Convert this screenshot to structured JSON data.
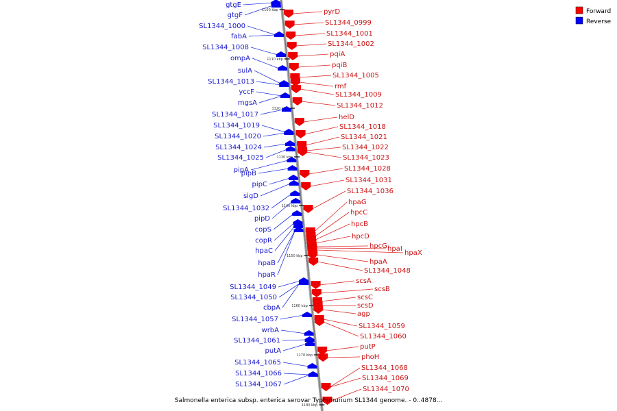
{
  "legend": [
    {
      "label": "Forward",
      "color": "#ff0000"
    },
    {
      "label": "Reverse",
      "color": "#0000ff"
    }
  ],
  "title": "Salmonella enterica subsp. enterica serovar Typhimurium SL1344 genome. - 0..4878...",
  "ticks": [
    "1100 kbp",
    "1110 kbp",
    "1120 kbp",
    "1130 kbp",
    "1140 kbp",
    "1150 kbp",
    "1160 kbp",
    "1170 kbp",
    "1180 kbp"
  ],
  "reverse": [
    "gtgE",
    "gtgF",
    "SL1344_1000",
    "fabA",
    "SL1344_1008",
    "ompA",
    "sulA",
    "SL1344_1013",
    "yccF",
    "mgsA",
    "SL1344_1017",
    "SL1344_1019",
    "SL1344_1020",
    "SL1344_1024",
    "SL1344_1025",
    "pipA",
    "pipB",
    "pipC",
    "sigD",
    "SL1344_1032",
    "pipD",
    "copS",
    "copR",
    "hpaC",
    "hpaB",
    "hpaR",
    "SL1344_1049",
    "SL1344_1050",
    "cbpA",
    "SL1344_1057",
    "wrbA",
    "SL1344_1061",
    "putA",
    "SL1344_1065",
    "SL1344_1066",
    "SL1344_1067"
  ],
  "forward": [
    "pyrD",
    "SL1344_0999",
    "SL1344_1001",
    "SL1344_1002",
    "pqiA",
    "pqiB",
    "SL1344_1005",
    "rmf",
    "SL1344_1009",
    "SL1344_1012",
    "helD",
    "SL1344_1018",
    "SL1344_1021",
    "SL1344_1022",
    "SL1344_1023",
    "SL1344_1028",
    "SL1344_1031",
    "SL1344_1036",
    "hpaG",
    "hpcC",
    "hpcB",
    "hpcD",
    "hpcG",
    "hpaI",
    "hpaX",
    "hpaA",
    "SL1344_1048",
    "scsA",
    "scsB",
    "scsC",
    "scsD",
    "agp",
    "SL1344_1059",
    "SL1344_1060",
    "putP",
    "phoH",
    "SL1344_1068",
    "SL1344_1069",
    "SL1344_1070"
  ]
}
